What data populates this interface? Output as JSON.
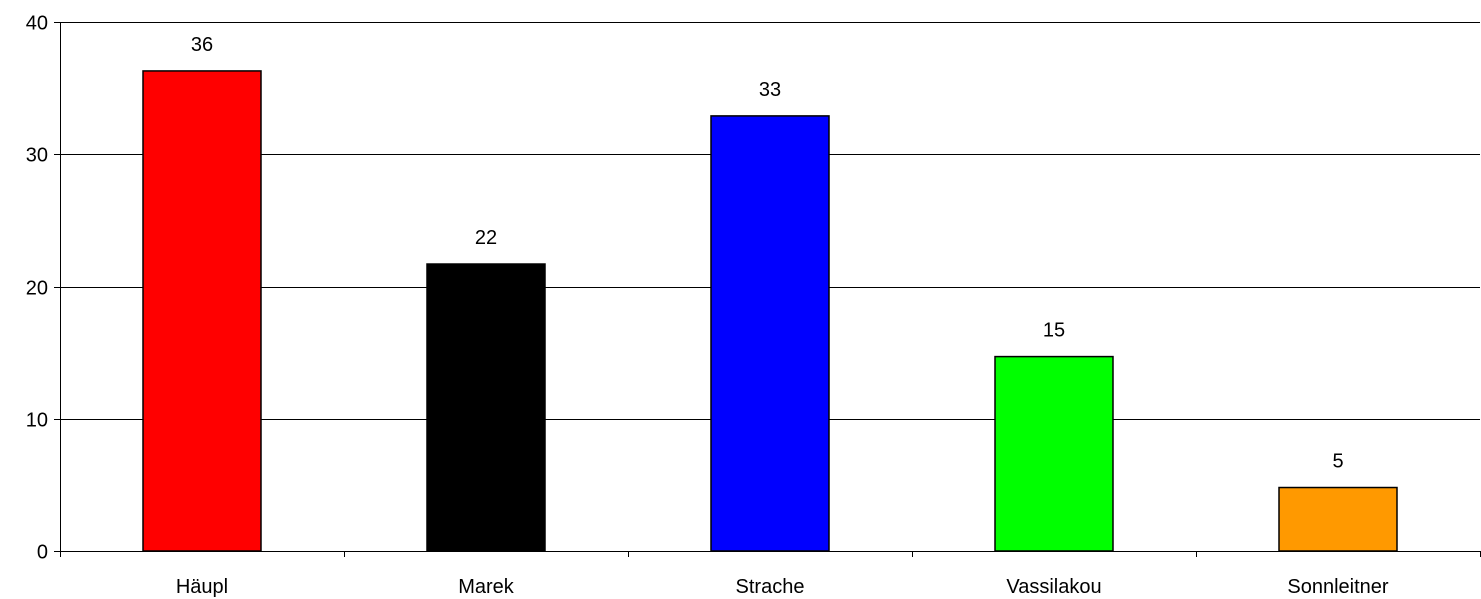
{
  "chart_data": {
    "type": "bar",
    "title": "",
    "xlabel": "",
    "ylabel": "",
    "categories": [
      "Häupl",
      "Marek",
      "Strache",
      "Vassilakou",
      "Sonnleitner"
    ],
    "values": [
      36.3,
      21.7,
      32.9,
      14.7,
      4.8
    ],
    "data_labels": [
      "36",
      "22",
      "33",
      "15",
      "5"
    ],
    "colors": [
      "#ff0000",
      "#000000",
      "#0000ff",
      "#00ff00",
      "#ff9900"
    ],
    "ylim": [
      0,
      40
    ],
    "yticks": [
      0,
      10,
      20,
      30,
      40
    ],
    "grid": true,
    "legend": "none"
  }
}
